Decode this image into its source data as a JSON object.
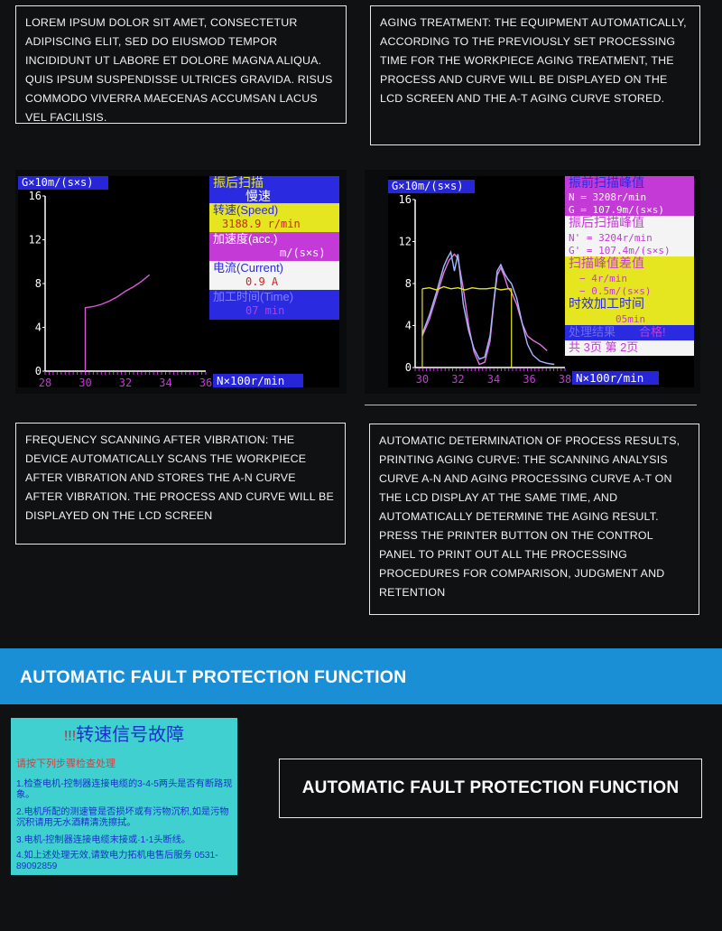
{
  "text_blocks": {
    "top_left": "LOREM IPSUM DOLOR SIT AMET, CONSECTETUR ADIPISCING ELIT, SED DO EIUSMOD TEMPOR INCIDIDUNT UT LABORE ET DOLORE MAGNA ALIQUA. QUIS IPSUM SUSPENDISSE ULTRICES GRAVIDA. RISUS COMMODO VIVERRA MAECENAS ACCUMSAN LACUS VEL FACILISIS.",
    "top_right": "AGING TREATMENT: THE EQUIPMENT AUTOMATICALLY, ACCORDING TO THE PREVIOUSLY SET PROCESSING TIME FOR THE WORKPIECE AGING TREATMENT, THE PROCESS AND CURVE WILL BE DISPLAYED ON THE LCD SCREEN AND THE A-T AGING CURVE STORED.",
    "middle_left": "FREQUENCY SCANNING AFTER VIBRATION: THE DEVICE AUTOMATICALLY SCANS THE WORKPIECE AFTER VIBRATION AND STORES THE A-N CURVE AFTER VIBRATION. THE PROCESS AND CURVE WILL BE DISPLAYED ON THE LCD SCREEN",
    "middle_right": "AUTOMATIC DETERMINATION OF PROCESS RESULTS, PRINTING AGING CURVE: THE SCANNING ANALYSIS CURVE A-N AND AGING PROCESSING CURVE A-T ON THE LCD DISPLAY AT THE SAME TIME, AND AUTOMATICALLY DETERMINE THE AGING RESULT. PRESS THE PRINTER BUTTON ON THE CONTROL PANEL TO PRINT OUT ALL THE PROCESSING PROCEDURES FOR COMPARISON, JUDGMENT AND RETENTION"
  },
  "screen1": {
    "y_label": "G×10m/(s×s)",
    "y_ticks": [
      "16",
      "12",
      "8",
      "4",
      "0"
    ],
    "x_ticks": [
      "28",
      "30",
      "32",
      "34",
      "36"
    ],
    "x_label": "N×100r/min",
    "panel": {
      "mode": "振后扫描",
      "mode_sub": "慢速",
      "speed_label": "转速(Speed)",
      "speed_value": "3188.9 r/min",
      "acc_label": "加速度(acc.)",
      "acc_unit": "m/(s×s)",
      "current_label": "电流(Current)",
      "current_value": "0.9 A",
      "time_label": "加工时间(Time)",
      "time_value": "07 min"
    },
    "chart_data": {
      "type": "line",
      "xlabel": "N×100r/min",
      "ylabel": "G×10m/(s×s)",
      "xlim": [
        28,
        36
      ],
      "ylim": [
        0,
        16
      ],
      "series": [
        {
          "x": [
            30,
            30,
            30.4,
            30.8,
            31.2,
            31.6,
            32.0,
            32.4,
            32.8,
            33.2
          ],
          "y": [
            0,
            5.8,
            5.9,
            6.1,
            6.4,
            6.8,
            7.3,
            7.7,
            8.2,
            8.8
          ]
        }
      ]
    }
  },
  "screen2": {
    "y_label": "G×10m/(s×s)",
    "y_ticks": [
      "16",
      "12",
      "8",
      "4",
      "0"
    ],
    "x_ticks": [
      "30",
      "32",
      "34",
      "36",
      "38"
    ],
    "x_label": "N×100r/min",
    "panel": {
      "pre_title": "振前扫描峰值",
      "pre_n": "N = 3208r/min",
      "pre_g": "G = 107.9m/(s×s)",
      "post_title": "振后扫描峰值",
      "post_n": "N' = 3204r/min",
      "post_g": "G' = 107.4m/(s×s)",
      "diff_title": "扫描峰值差值",
      "diff_n": "− 4r/min",
      "diff_g": "− 0.5m/(s×s)",
      "time_title": "时效加工时间",
      "time_value": "05min",
      "result_label": "处理结果",
      "result_value": "合格!",
      "pages": "共 3页  第 2页"
    },
    "chart_data": {
      "type": "line",
      "xlabel": "N×100r/min",
      "ylabel": "G×10m/(s×s)",
      "xlim": [
        29.6,
        38
      ],
      "ylim": [
        0,
        16
      ],
      "series": [
        {
          "x": [
            30,
            30.4,
            30.8,
            31.2,
            31.5,
            31.8,
            32.0,
            32.3,
            32.6,
            32.9,
            33.2,
            33.5,
            33.8,
            34.0,
            34.2,
            34.4,
            34.6,
            34.8,
            35.0,
            35.3,
            35.6,
            35.9,
            36.2,
            36.6,
            37.0
          ],
          "y": [
            3.0,
            4.6,
            6.8,
            9.0,
            10.2,
            10.8,
            10.4,
            7.5,
            4.0,
            1.5,
            0.3,
            0.5,
            2.5,
            6.0,
            8.8,
            9.5,
            8.7,
            7.6,
            7.2,
            6.0,
            4.2,
            3.0,
            2.6,
            2.2,
            1.6
          ]
        },
        {
          "x": [
            30,
            30.4,
            30.8,
            31.2,
            31.4,
            31.6,
            31.8,
            32.0,
            32.3,
            32.6,
            32.9,
            33.2,
            33.5,
            33.8,
            34.0,
            34.2,
            34.4,
            34.6,
            34.8,
            35.0,
            35.3,
            35.6,
            35.9,
            36.2,
            36.6,
            37.0,
            37.4
          ],
          "y": [
            3.2,
            5.0,
            7.2,
            9.6,
            10.4,
            11.0,
            9.2,
            10.8,
            6.0,
            3.5,
            1.8,
            0.8,
            1.0,
            3.0,
            6.2,
            9.2,
            9.8,
            9.0,
            8.4,
            8.0,
            6.6,
            4.2,
            2.2,
            1.2,
            0.6,
            0.4,
            0.3
          ]
        },
        {
          "x": [
            30,
            30.4,
            30.8,
            31.2,
            31.6,
            32.0,
            32.4,
            32.8,
            33.2,
            33.6,
            34.0,
            34.4,
            34.8,
            35.0
          ],
          "y": [
            7.5,
            7.6,
            7.4,
            7.7,
            7.5,
            7.6,
            7.4,
            7.6,
            7.5,
            7.5,
            7.6,
            7.4,
            7.5,
            7.5
          ]
        }
      ]
    }
  },
  "section": {
    "banner_title": "AUTOMATIC FAULT PROTECTION FUNCTION",
    "box_title": "AUTOMATIC FAULT PROTECTION FUNCTION"
  },
  "fault_screen": {
    "warning_marks": "!!!",
    "title": "转速信号故障",
    "subtitle": "请按下列步骤检查处理",
    "line1": "1.检查电机-控制器连接电缆的3-4-5两头是否有断路现象。",
    "line2": "2.电机所配的测速管是否损坏或有污物沉积,如是污物沉积请用无水酒精清洗擦拭。",
    "line3": "3.电机-控制器连接电缆末接或·1-1头断线。",
    "line4": "4.如上述处理无效,请致电力拓机电售后服务 0531-89092859"
  },
  "colors": {
    "banner": "#1b8fd6",
    "lcd_bg": "#000000",
    "panel_blue": "#2a2ae0",
    "panel_magenta": "#c43ad6",
    "panel_yellow": "#e6e620",
    "panel_white": "#f4f4f4",
    "fault_bg": "#3fd0cf"
  }
}
